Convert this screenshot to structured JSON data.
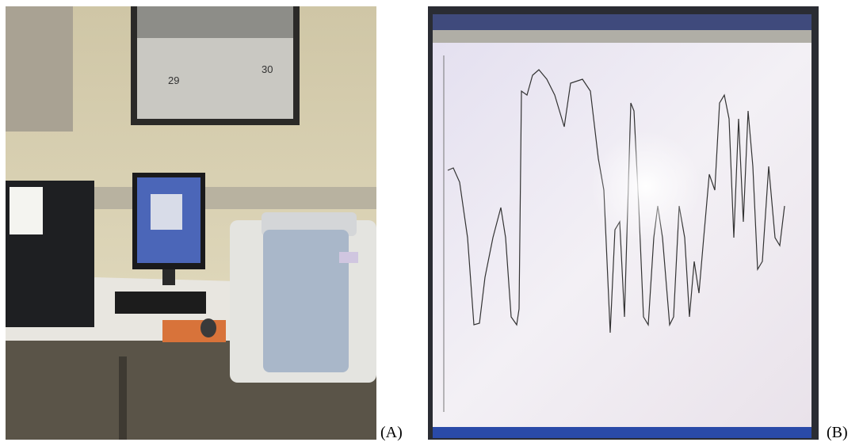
{
  "panels": [
    {
      "label": "(A)",
      "photo_text": [
        "29",
        "30"
      ]
    },
    {
      "label": "(B)"
    }
  ]
}
